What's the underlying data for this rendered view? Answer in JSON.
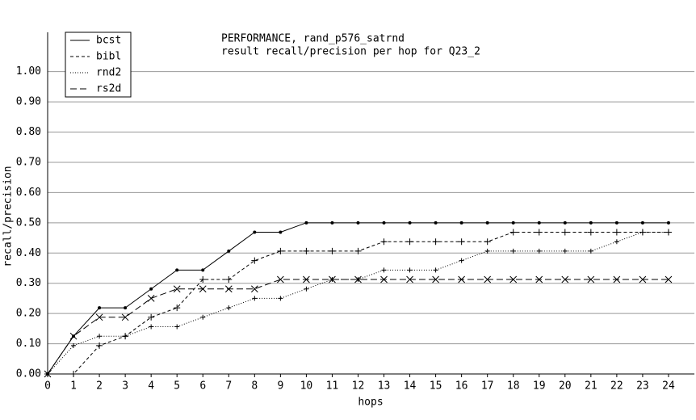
{
  "chart_data": {
    "type": "line",
    "title": "PERFORMANCE, rand_p576_satrnd",
    "subtitle": "result recall/precision per hop for Q23_2",
    "x_label": "hops",
    "y_label": "recall/precision",
    "x": [
      0,
      1,
      2,
      3,
      4,
      5,
      6,
      7,
      8,
      9,
      10,
      11,
      12,
      13,
      14,
      15,
      16,
      17,
      18,
      19,
      20,
      21,
      22,
      23,
      24
    ],
    "xlim": [
      0,
      25
    ],
    "xticks": [
      0,
      1,
      2,
      3,
      4,
      5,
      6,
      7,
      8,
      9,
      10,
      11,
      12,
      13,
      14,
      15,
      16,
      17,
      18,
      19,
      20,
      21,
      22,
      23,
      24
    ],
    "ylim": [
      0,
      1.13
    ],
    "yticks": [
      {
        "value": 0,
        "label": "0.00"
      },
      {
        "value": 0.1,
        "label": "0.10"
      },
      {
        "value": 0.2,
        "label": "0.20"
      },
      {
        "value": 0.3,
        "label": "0.30"
      },
      {
        "value": 0.4,
        "label": "0.40"
      },
      {
        "value": 0.5,
        "label": "0.50"
      },
      {
        "value": 0.6,
        "label": "0.60"
      },
      {
        "value": 0.7,
        "label": "0.70"
      },
      {
        "value": 0.8,
        "label": "0.80"
      },
      {
        "value": 0.9,
        "label": "0.90"
      },
      {
        "value": 1.0,
        "label": "1.00"
      }
    ],
    "grid": true,
    "legend": "top-left",
    "series": [
      {
        "name": "bcst",
        "color": "#000000",
        "values": [
          0,
          0.125,
          0.21875,
          0.21875,
          0.28125,
          0.34375,
          0.34375,
          0.40625,
          0.46875,
          0.46875,
          0.5,
          0.5,
          0.5,
          0.5,
          0.5,
          0.5,
          0.5,
          0.5,
          0.5,
          0.5,
          0.5,
          0.5,
          0.5,
          0.5,
          0.5
        ]
      },
      {
        "name": "bibl",
        "color": "#000000",
        "values": [
          0,
          0,
          0.09375,
          0.125,
          0.1875,
          0.21875,
          0.3125,
          0.3125,
          0.375,
          0.40625,
          0.40625,
          0.40625,
          0.40625,
          0.4375,
          0.4375,
          0.4375,
          0.4375,
          0.4375,
          0.46875,
          0.46875,
          0.46875,
          0.46875,
          0.46875,
          0.46875,
          0.46875
        ]
      },
      {
        "name": "rnd2",
        "color": "#000000",
        "values": [
          0,
          0.09375,
          0.125,
          0.125,
          0.15625,
          0.15625,
          0.1875,
          0.21875,
          0.25,
          0.25,
          0.28125,
          0.3125,
          0.3125,
          0.34375,
          0.34375,
          0.34375,
          0.375,
          0.40625,
          0.40625,
          0.40625,
          0.40625,
          0.40625,
          0.4375,
          0.46875,
          0.46875
        ]
      },
      {
        "name": "rs2d",
        "color": "#000000",
        "values": [
          0,
          0.125,
          0.1875,
          0.1875,
          0.25,
          0.28125,
          0.28125,
          0.28125,
          0.28125,
          0.3125,
          0.3125,
          0.3125,
          0.3125,
          0.3125,
          0.3125,
          0.3125,
          0.3125,
          0.3125,
          0.3125,
          0.3125,
          0.3125,
          0.3125,
          0.3125,
          0.3125,
          0.3125
        ]
      }
    ]
  }
}
